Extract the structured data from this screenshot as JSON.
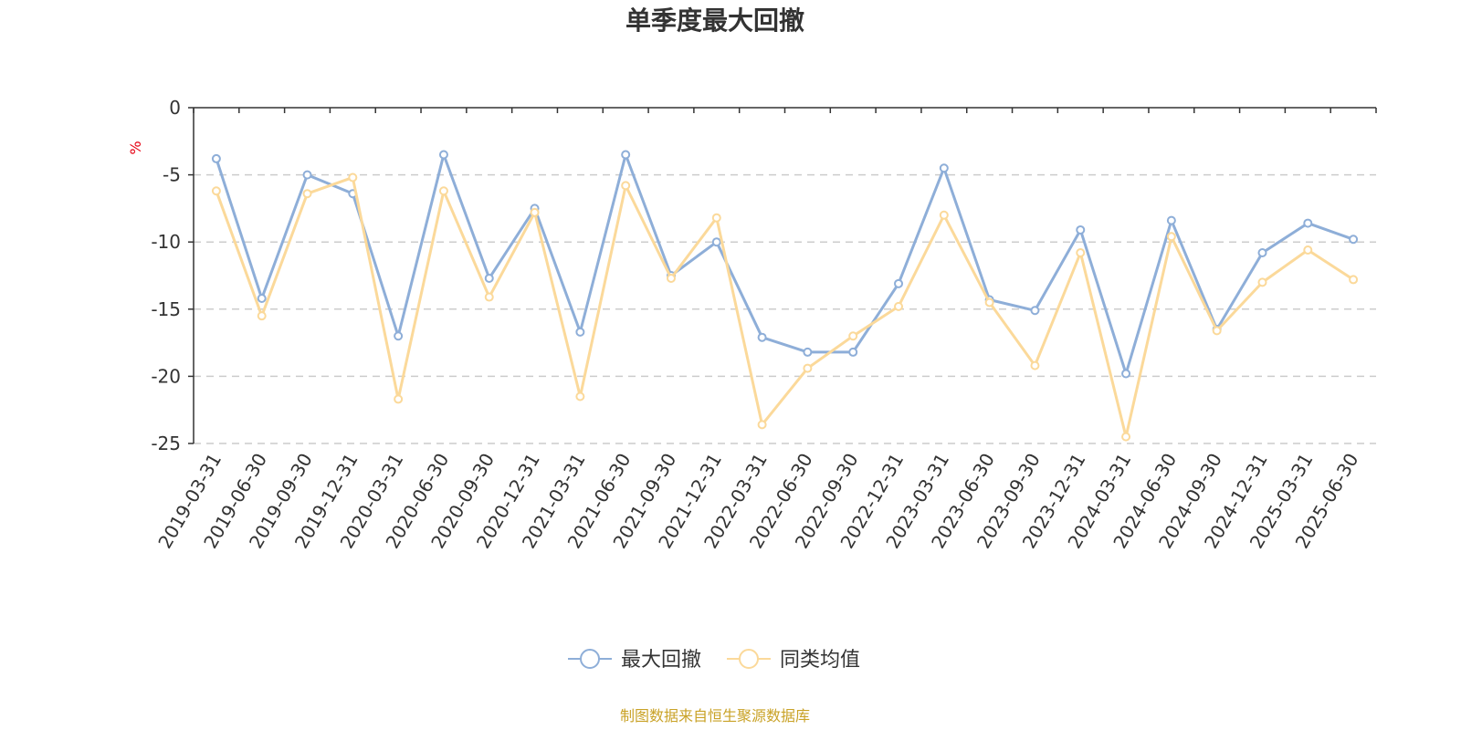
{
  "chart_data": {
    "type": "line",
    "title": "单季度最大回撤",
    "ylabel": "%",
    "ylim": [
      -25,
      0
    ],
    "yticks": [
      0,
      -5,
      -10,
      -15,
      -20,
      -25
    ],
    "grid": true,
    "legend_position": "bottom-center",
    "categories": [
      "2019-03-31",
      "2019-06-30",
      "2019-09-30",
      "2019-12-31",
      "2020-03-31",
      "2020-06-30",
      "2020-09-30",
      "2020-12-31",
      "2021-03-31",
      "2021-06-30",
      "2021-09-30",
      "2021-12-31",
      "2022-03-31",
      "2022-06-30",
      "2022-09-30",
      "2022-12-31",
      "2023-03-31",
      "2023-06-30",
      "2023-09-30",
      "2023-12-31",
      "2024-03-31",
      "2024-06-30",
      "2024-09-30",
      "2024-12-31",
      "2025-03-31",
      "2025-06-30"
    ],
    "series": [
      {
        "name": "最大回撤",
        "color": "#8eaed8",
        "values": [
          -3.8,
          -14.2,
          -5.0,
          -6.4,
          -17.0,
          -3.5,
          -12.7,
          -7.5,
          -16.7,
          -3.5,
          -12.5,
          -10.0,
          -17.1,
          -18.2,
          -18.2,
          -13.1,
          -4.5,
          -14.3,
          -15.1,
          -9.1,
          -19.8,
          -8.4,
          -16.5,
          -10.8,
          -8.6,
          -9.8
        ]
      },
      {
        "name": "同类均值",
        "color": "#fbd99a",
        "values": [
          -6.2,
          -15.5,
          -6.4,
          -5.2,
          -21.7,
          -6.2,
          -14.1,
          -7.8,
          -21.5,
          -5.8,
          -12.7,
          -8.2,
          -23.6,
          -19.4,
          -17.0,
          -14.8,
          -8.0,
          -14.5,
          -19.2,
          -10.8,
          -24.5,
          -9.6,
          -16.6,
          -13.0,
          -10.6,
          -12.8
        ]
      }
    ],
    "source": "制图数据来自恒生聚源数据库"
  }
}
